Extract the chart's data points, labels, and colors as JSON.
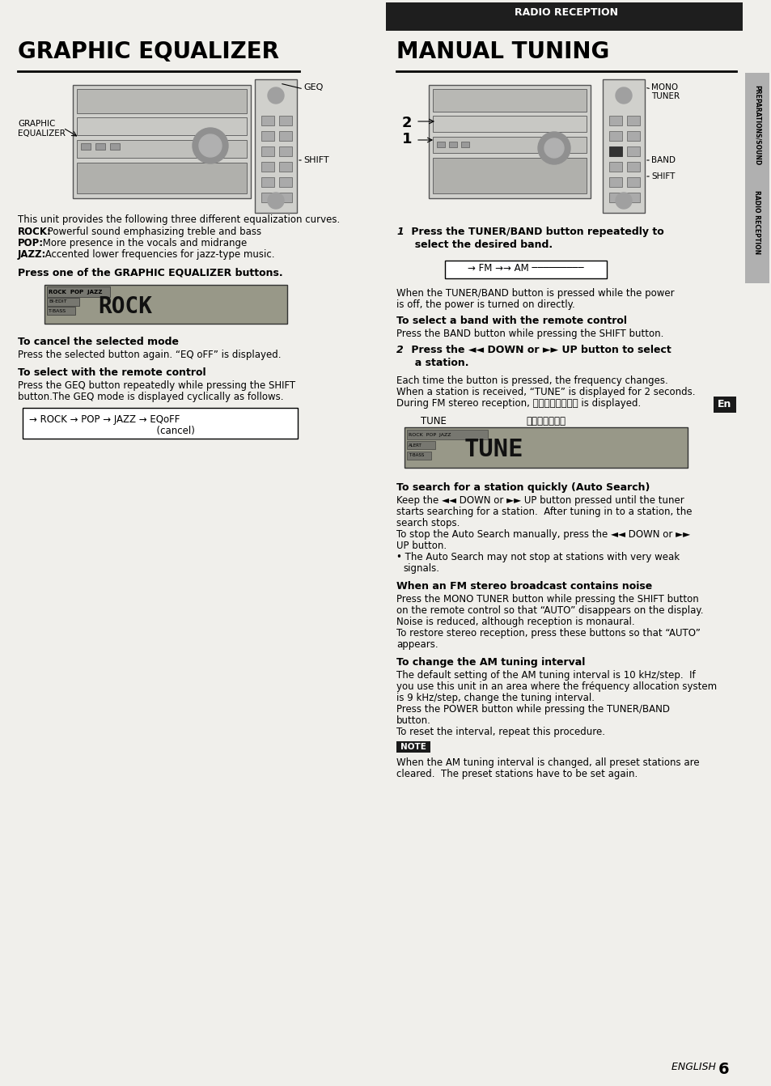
{
  "bg_color": "#f0efeb",
  "left_title": "GRAPHIC EQUALIZER",
  "right_header": "RADIO RECEPTION",
  "right_title": "MANUAL TUNING",
  "press_one_heading": "Press one of the GRAPHIC EQUALIZER buttons.",
  "to_cancel_heading": "To cancel the selected mode",
  "to_cancel_body": "Press the selected button again. “EQ oFF” is displayed.",
  "to_select_heading": "To select with the remote control",
  "to_select_body1": "Press the GEQ button repeatedly while pressing the SHIFT",
  "to_select_body2": "button.The GEQ mode is displayed cyclically as follows.",
  "auto_search_heading": "To search for a station quickly (Auto Search)",
  "auto_search_body": "Keep the ◄◄ DOWN or ►► UP button pressed until the tuner\nstarts searching for a station.  After tuning in to a station, the\nsearch stops.\nTo stop the Auto Search manually, press the ◄◄ DOWN or ►►\nUP button.\n• The Auto Search may not stop at stations with very weak\n  signals.",
  "fm_noise_heading": "When an FM stereo broadcast contains noise",
  "fm_noise_body": "Press the MONO TUNER button while pressing the SHIFT button\non the remote control so that “AUTO” disappears on the display.\nNoise is reduced, although reception is monaural.\nTo restore stereo reception, press these buttons so that “AUTO”\nappears.",
  "am_heading": "To change the AM tuning interval",
  "am_body": "The default setting of the AM tuning interval is 10 kHz/step.  If\nyou use this unit in an area where the frequency allocation system\nis 9 kHz/step, change the tuning interval.\nPress the POWER button while pressing the TUNER/BAND\nbutton.\nTo reset the interval, repeat this procedure.",
  "note_label": "NOTE",
  "note_body": "When the AM tuning interval is changed, all preset stations are\ncleared.  The preset stations have to be set again.",
  "footer_text": "ENGLISH ",
  "footer_num": "6",
  "en_label": "En",
  "header_color": "#1e1e1e",
  "header_text_color": "#ffffff",
  "side_tab_color": "#b0b0b0",
  "note_bg": "#1a1a1a"
}
